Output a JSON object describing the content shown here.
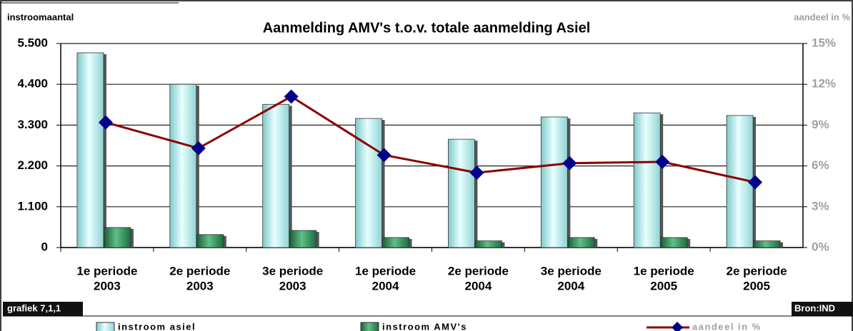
{
  "chart_data": {
    "type": "bar_line",
    "title": "Aanmelding AMV's t.o.v. totale aanmelding Asiel",
    "y_axis_label": "instroomaantal",
    "y2_axis_label": "aandeel in %",
    "annotations": [
      "grafiek 7,1,1",
      "Bron:IND"
    ],
    "categories": [
      [
        "1e periode",
        "2003"
      ],
      [
        "2e periode",
        "2003"
      ],
      [
        "3e periode",
        "2003"
      ],
      [
        "1e periode",
        "2004"
      ],
      [
        "2e periode",
        "2004"
      ],
      [
        "3e periode",
        "2004"
      ],
      [
        "1e periode",
        "2005"
      ],
      [
        "2e periode",
        "2005"
      ]
    ],
    "series": [
      {
        "name": "instroom asiel",
        "type": "bar",
        "color": "#c8f4f4",
        "values": [
          5250,
          4400,
          3860,
          3480,
          2920,
          3520,
          3630,
          3560
        ]
      },
      {
        "name": "instroom AMV's",
        "type": "bar",
        "color": "#2e8b57",
        "values": [
          540,
          350,
          460,
          270,
          180,
          270,
          270,
          180
        ]
      },
      {
        "name": "aandeel in %",
        "type": "line",
        "axis": "y2",
        "color": "#8b0000",
        "marker_color": "#00008b",
        "values": [
          9.2,
          7.3,
          11.1,
          6.8,
          5.5,
          6.2,
          6.3,
          4.8
        ]
      }
    ],
    "ylim": [
      0,
      5500
    ],
    "yticks": [
      0,
      {
        "value": 1100,
        "label": "1.100"
      },
      {
        "value": 2200,
        "label": "2.200"
      },
      {
        "value": 3300,
        "label": "3.300"
      },
      {
        "value": 4400,
        "label": "4.400"
      },
      {
        "value": 5500,
        "label": "5.500"
      }
    ],
    "y2lim": [
      0,
      15
    ],
    "y2ticks": [
      {
        "value": 0,
        "label": "0%"
      },
      {
        "value": 3,
        "label": "3%"
      },
      {
        "value": 6,
        "label": "6%"
      },
      {
        "value": 9,
        "label": "9%"
      },
      {
        "value": 12,
        "label": "12%"
      },
      {
        "value": 15,
        "label": "15%"
      }
    ],
    "grid": true,
    "legend": "bottom"
  }
}
